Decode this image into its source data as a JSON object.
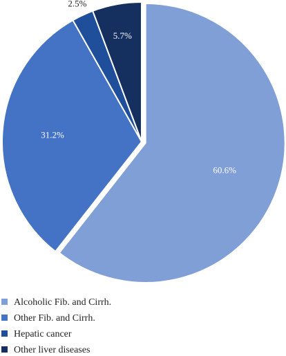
{
  "chart_data": {
    "type": "pie",
    "title": "",
    "categories": [
      "Alcoholic Fib. and Cirrh.",
      "Other Fib. and Cirrh.",
      "Hepatic cancer",
      "Other liver diseases"
    ],
    "values": [
      60.6,
      31.2,
      2.5,
      5.7
    ],
    "data_labels": [
      "60.6%",
      "31.2%",
      "2.5%",
      "5.7%"
    ],
    "colors": [
      "#7f9fd6",
      "#4472c4",
      "#1f4e9a",
      "#15305f"
    ],
    "exploded_slice": "Alcoholic Fib. and Cirrh.",
    "legend_position": "bottom-left"
  }
}
